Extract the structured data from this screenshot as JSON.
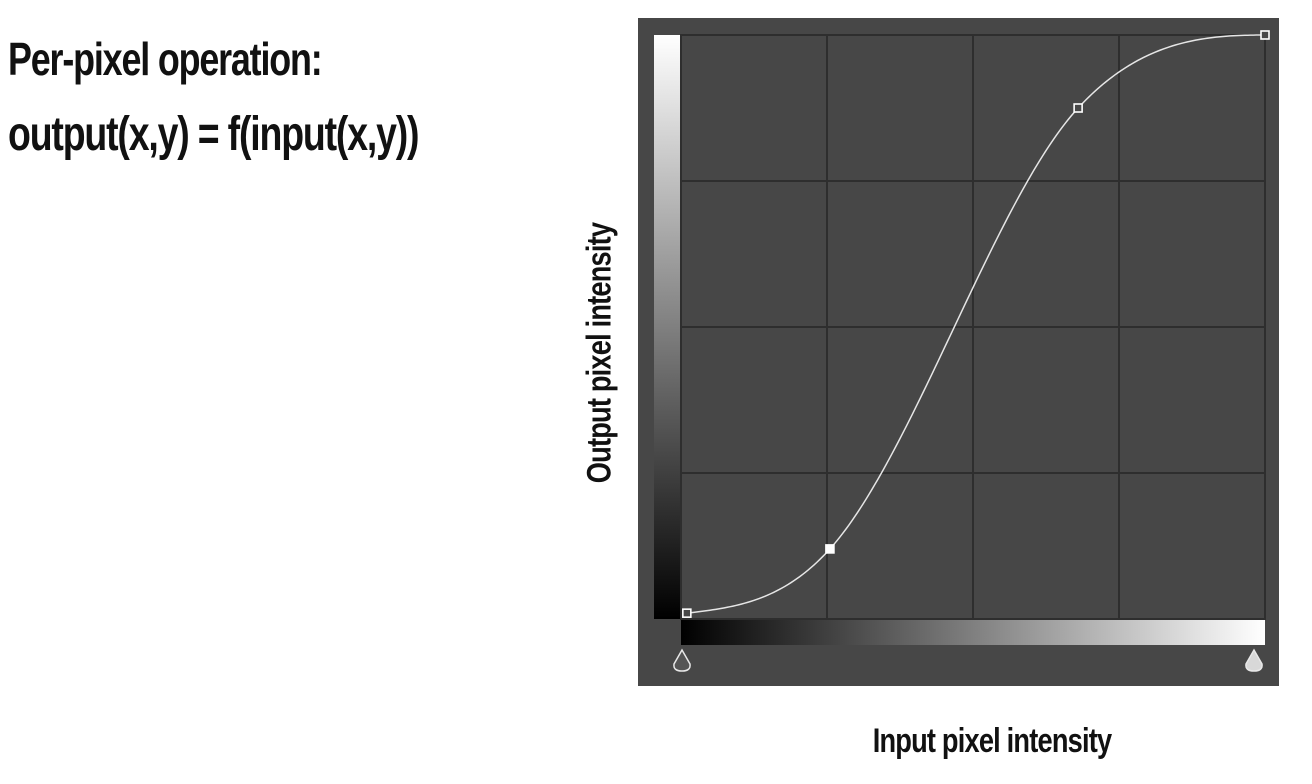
{
  "heading": {
    "line1": "Per-pixel operation:",
    "line2": "output(x,y) = f(input(x,y))"
  },
  "curves_panel": {
    "x_axis_label": "Input pixel intensity",
    "y_axis_label": "Output pixel intensity",
    "background_color": "#474747",
    "grid_color": "#2e2e2e",
    "curve_color": "#e6e6e6",
    "grid_divisions": 4,
    "control_points": [
      {
        "input": 0.01,
        "output": 0.01,
        "selected": false
      },
      {
        "input": 0.255,
        "output": 0.12,
        "selected": true
      },
      {
        "input": 0.68,
        "output": 0.875,
        "selected": false
      },
      {
        "input": 1.0,
        "output": 1.0,
        "selected": false
      }
    ],
    "black_point_handle": "black-point-slider-icon",
    "white_point_handle": "white-point-slider-icon"
  }
}
